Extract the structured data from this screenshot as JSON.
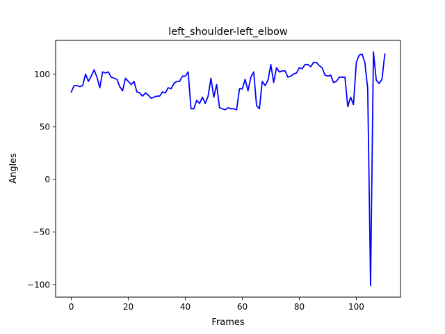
{
  "chart_data": {
    "type": "line",
    "title": "left_shoulder-left_elbow",
    "xlabel": "Frames",
    "ylabel": "Angles",
    "xlim": [
      -5.5,
      115.5
    ],
    "ylim": [
      -112,
      132
    ],
    "xticks": [
      0,
      20,
      40,
      60,
      80,
      100
    ],
    "yticks": [
      -100,
      -50,
      0,
      50,
      100
    ],
    "grid": false,
    "series": [
      {
        "color": "#0000ff",
        "x": [
          0,
          1,
          2,
          3,
          4,
          5,
          6,
          7,
          8,
          9,
          10,
          11,
          12,
          13,
          14,
          15,
          16,
          17,
          18,
          19,
          20,
          21,
          22,
          23,
          24,
          25,
          26,
          27,
          28,
          29,
          30,
          31,
          32,
          33,
          34,
          35,
          36,
          37,
          38,
          39,
          40,
          41,
          42,
          43,
          44,
          45,
          46,
          47,
          48,
          49,
          50,
          51,
          52,
          53,
          54,
          55,
          56,
          57,
          58,
          59,
          60,
          61,
          62,
          63,
          64,
          65,
          66,
          67,
          68,
          69,
          70,
          71,
          72,
          73,
          74,
          75,
          76,
          77,
          78,
          79,
          80,
          81,
          82,
          83,
          84,
          85,
          86,
          87,
          88,
          89,
          90,
          91,
          92,
          93,
          94,
          95,
          96,
          97,
          98,
          99,
          100,
          101,
          102,
          103,
          104,
          105,
          106,
          107,
          108,
          109,
          110
        ],
        "y": [
          83,
          89,
          89,
          88,
          89,
          100,
          93,
          98,
          104,
          97,
          87,
          102,
          101,
          102,
          97,
          96,
          95,
          88,
          84,
          96,
          93,
          90,
          93,
          83,
          82,
          79,
          82,
          80,
          77,
          78,
          79,
          79,
          83,
          82,
          87,
          86,
          91,
          93,
          93,
          98,
          98,
          102,
          67,
          67,
          75,
          72,
          78,
          72,
          79,
          96,
          78,
          90,
          68,
          67,
          66,
          68,
          67,
          67,
          66,
          86,
          86,
          95,
          84,
          97,
          102,
          70,
          67,
          93,
          89,
          94,
          109,
          92,
          106,
          102,
          103,
          103,
          97,
          98,
          100,
          101,
          106,
          105,
          109,
          109,
          107,
          111,
          111,
          108,
          106,
          99,
          98,
          99,
          92,
          93,
          97,
          97,
          97,
          69,
          78,
          71,
          111,
          118,
          119,
          111,
          86,
          -101,
          121,
          94,
          91,
          95,
          119
        ]
      }
    ]
  }
}
